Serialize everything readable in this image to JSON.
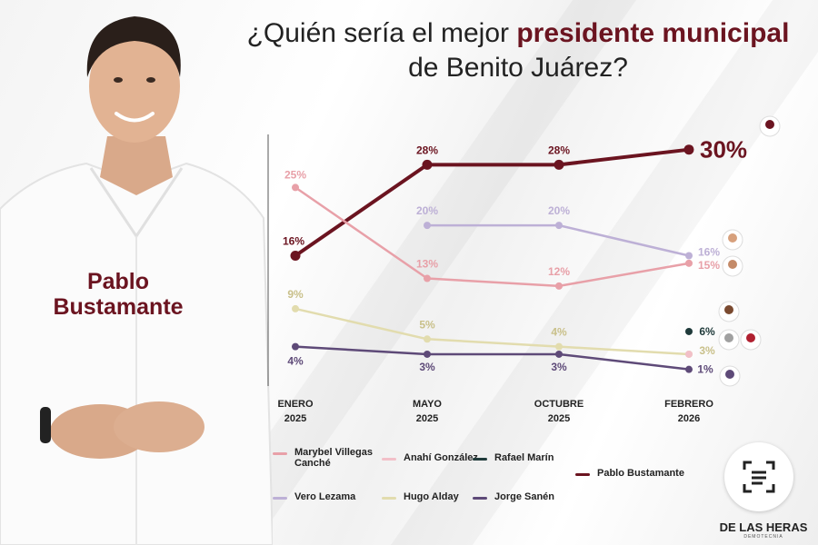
{
  "title": {
    "line1_pre": "¿Quién sería el mejor ",
    "line1_highlight": "presidente municipal",
    "line2": "de Benito Juárez?"
  },
  "featured": {
    "name_line1": "Pablo",
    "name_line2": "Bustamante"
  },
  "brand": {
    "name": "DE LAS HERAS",
    "sub": "DEMOTECNIA"
  },
  "colors": {
    "accent": "#6b1420"
  },
  "chart_data": {
    "type": "line",
    "categories": [
      {
        "line1": "ENERO",
        "line2": "2025"
      },
      {
        "line1": "MAYO",
        "line2": "2025"
      },
      {
        "line1": "OCTUBRE",
        "line2": "2025"
      },
      {
        "line1": "FEBRERO",
        "line2": "2026"
      }
    ],
    "ylim": [
      0,
      32
    ],
    "series": [
      {
        "name": "Pablo Bustamante",
        "color": "#6b1420",
        "values": [
          16,
          28,
          28,
          30
        ],
        "labels": [
          "16%",
          "28%",
          "28%",
          "30%"
        ],
        "emphasis": true
      },
      {
        "name": "Marybel Villegas Canché",
        "color": "#e8a0a8",
        "values": [
          25,
          13,
          12,
          15
        ],
        "labels": [
          "25%",
          "13%",
          "12%",
          "15%"
        ]
      },
      {
        "name": "Vero Lezama",
        "color": "#bdb0d6",
        "values": [
          null,
          20,
          20,
          16
        ],
        "labels": [
          "",
          "20%",
          "20%",
          "16%"
        ]
      },
      {
        "name": "Hugo Alday",
        "color": "#e2dcae",
        "values": [
          9,
          5,
          4,
          3
        ],
        "labels": [
          "9%",
          "5%",
          "4%",
          "3%"
        ]
      },
      {
        "name": "Jorge Sanén",
        "color": "#5e4a78",
        "values": [
          4,
          3,
          3,
          1
        ],
        "labels": [
          "4%",
          "3%",
          "3%",
          "1%"
        ]
      },
      {
        "name": "Rafael Marín",
        "color": "#1f3a3a",
        "values": [
          null,
          null,
          null,
          6
        ],
        "labels": [
          "",
          "",
          "",
          "6%"
        ]
      },
      {
        "name": "Anahí González",
        "color": "#f2c0c8",
        "values": [
          null,
          null,
          null,
          3
        ],
        "labels": [
          "",
          "",
          "",
          ""
        ]
      }
    ],
    "legend": [
      {
        "name_line1": "Marybel Villegas",
        "name_line2": "Canché",
        "color": "#e8a0a8"
      },
      {
        "name_line1": "Anahí González",
        "name_line2": "",
        "color": "#f2c0c8"
      },
      {
        "name_line1": "Rafael Marín",
        "name_line2": "",
        "color": "#1f3a3a"
      },
      {
        "name_line1": "Pablo Bustamante",
        "name_line2": "",
        "color": "#6b1420"
      },
      {
        "name_line1": "Vero Lezama",
        "name_line2": "",
        "color": "#bdb0d6"
      },
      {
        "name_line1": "Hugo Alday",
        "name_line2": "",
        "color": "#e2dcae"
      },
      {
        "name_line1": "Jorge Sanén",
        "name_line2": "",
        "color": "#5e4a78"
      }
    ]
  }
}
